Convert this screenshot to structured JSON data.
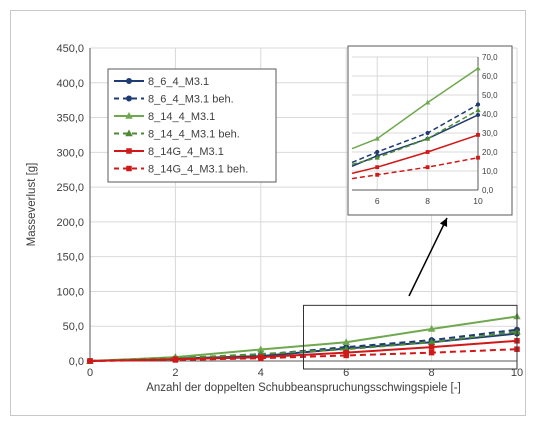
{
  "chart_data": {
    "type": "line",
    "xlabel": "Anzahl der doppelten Schubbeanspruchungsschwingspiele [-]",
    "ylabel": "Masseverlust [g]",
    "xlim": [
      0,
      10
    ],
    "ylim": [
      0,
      450
    ],
    "x_ticks": [
      "0",
      "2",
      "4",
      "6",
      "8",
      "10"
    ],
    "y_ticks": [
      "0,0",
      "50,0",
      "100,0",
      "150,0",
      "200,0",
      "250,0",
      "300,0",
      "350,0",
      "400,0",
      "450,0"
    ],
    "grid": true,
    "legend_position": "top-left",
    "x": [
      0,
      2,
      4,
      6,
      8,
      10
    ],
    "series": [
      {
        "name": "8_6_4_M3.1",
        "color": "#1f3b73",
        "dashed": false,
        "marker": "circle",
        "values": [
          0,
          3.5,
          7,
          18,
          27,
          39.5
        ]
      },
      {
        "name": "8_6_4_M3.1 beh.",
        "color": "#1f3b73",
        "dashed": true,
        "marker": "circle",
        "values": [
          0,
          4,
          9,
          20,
          30,
          45
        ]
      },
      {
        "name": "8_14_4_M3.1",
        "color": "#70a850",
        "dashed": false,
        "marker": "triangle",
        "values": [
          0,
          5.5,
          16.5,
          27,
          46,
          64
        ]
      },
      {
        "name": "8_14_4_M3.1 beh.",
        "color": "#4e8a33",
        "dashed": true,
        "marker": "triangle",
        "values": [
          0,
          4,
          10,
          17,
          27,
          42
        ]
      },
      {
        "name": "8_14G_4_M3.1",
        "color": "#d01818",
        "dashed": false,
        "marker": "square",
        "values": [
          0,
          2.5,
          5.5,
          12,
          20,
          29
        ]
      },
      {
        "name": "8_14G_4_M3.1 beh.",
        "color": "#d01818",
        "dashed": true,
        "marker": "square",
        "values": [
          0,
          1.5,
          4,
          8,
          12,
          17
        ]
      }
    ],
    "inset": {
      "xlim": [
        5,
        10
      ],
      "ylim": [
        0,
        70
      ],
      "x_ticks": [
        "6",
        "8",
        "10"
      ],
      "y_ticks": [
        "0,0",
        "10,0",
        "20,0",
        "30,0",
        "40,0",
        "50,0",
        "60,0",
        "70,0"
      ]
    }
  }
}
